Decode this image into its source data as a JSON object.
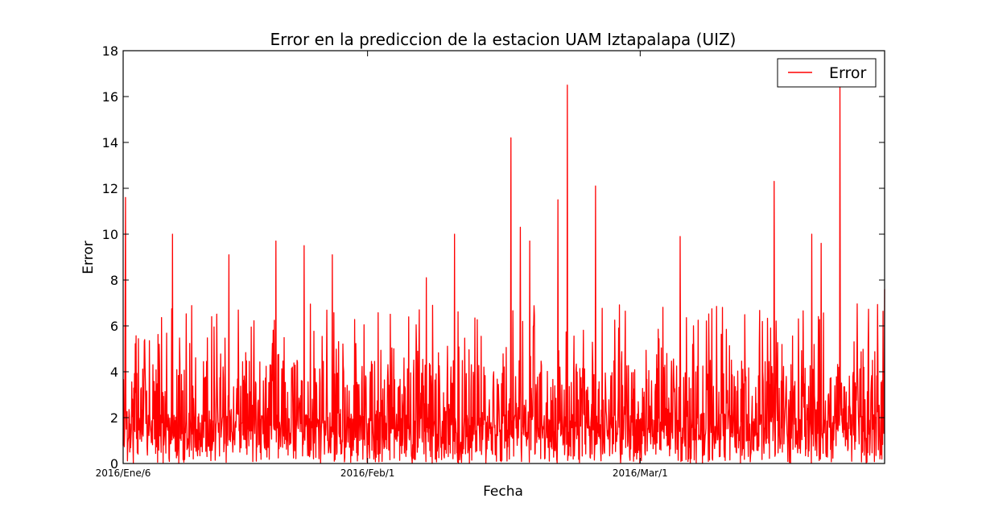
{
  "chart_data": {
    "type": "line",
    "title": "Error en la prediccion de la estacion UAM Iztapalapa (UIZ)",
    "xlabel": "Fecha",
    "ylabel": "Error",
    "ylim": [
      0,
      18
    ],
    "yticks": [
      0,
      2,
      4,
      6,
      8,
      10,
      12,
      14,
      16,
      18
    ],
    "xlim": [
      "2016-01-06",
      "2016-03-27"
    ],
    "xticks": [
      {
        "date": "2016-01-06",
        "label": "2016/Ene/6"
      },
      {
        "date": "2016-02-01",
        "label": "2016/Feb/1"
      },
      {
        "date": "2016-03-01",
        "label": "2016/Mar/1"
      }
    ],
    "grid": false,
    "legend": {
      "position": "top-right",
      "entries": [
        "Error"
      ]
    },
    "series": [
      {
        "name": "Error",
        "color": "#ff0000",
        "sampling": "hourly",
        "peaks": [
          {
            "x": "2016-01-06",
            "y": 11.6
          },
          {
            "x": "2016-01-11",
            "y": 10.0
          },
          {
            "x": "2016-01-17",
            "y": 9.1
          },
          {
            "x": "2016-01-22",
            "y": 9.7
          },
          {
            "x": "2016-01-25",
            "y": 9.5
          },
          {
            "x": "2016-01-28",
            "y": 9.1
          },
          {
            "x": "2016-02-07",
            "y": 8.1
          },
          {
            "x": "2016-02-10",
            "y": 10.0
          },
          {
            "x": "2016-02-16",
            "y": 14.2
          },
          {
            "x": "2016-02-17",
            "y": 10.3
          },
          {
            "x": "2016-02-18",
            "y": 9.7
          },
          {
            "x": "2016-02-21",
            "y": 11.5
          },
          {
            "x": "2016-02-22",
            "y": 16.5
          },
          {
            "x": "2016-02-25",
            "y": 12.1
          },
          {
            "x": "2016-03-05",
            "y": 9.9
          },
          {
            "x": "2016-03-15",
            "y": 12.3
          },
          {
            "x": "2016-03-19",
            "y": 10.0
          },
          {
            "x": "2016-03-20",
            "y": 9.6
          },
          {
            "x": "2016-03-22",
            "y": 16.5
          },
          {
            "x": "2016-03-27",
            "y": 7.6
          }
        ]
      }
    ]
  }
}
